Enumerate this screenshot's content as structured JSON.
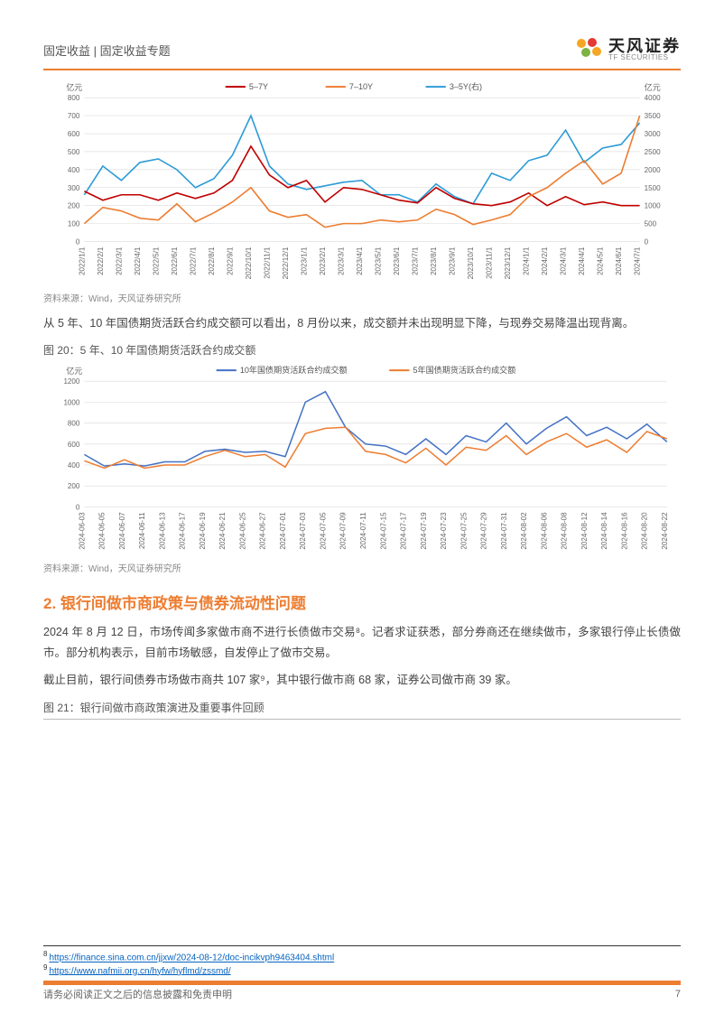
{
  "header": {
    "left": "固定收益 | 固定收益专题",
    "logo_cn": "天风证券",
    "logo_en": "TF SECURITIES"
  },
  "chart1": {
    "type": "line",
    "unit_left": "亿元",
    "unit_right": "亿元",
    "legend": [
      {
        "label": "5–7Y",
        "color": "#c00000"
      },
      {
        "label": "7–10Y",
        "color": "#ed7d31"
      },
      {
        "label": "3–5Y(右)",
        "color": "#2e9bd6"
      }
    ],
    "y_left": {
      "min": 0,
      "max": 800,
      "step": 100
    },
    "y_right": {
      "min": 0,
      "max": 4000,
      "step": 500
    },
    "x_labels": [
      "2022/1/1",
      "2022/2/1",
      "2022/3/1",
      "2022/4/1",
      "2022/5/1",
      "2022/6/1",
      "2022/7/1",
      "2022/8/1",
      "2022/9/1",
      "2022/10/1",
      "2022/11/1",
      "2022/12/1",
      "2023/1/1",
      "2023/2/1",
      "2023/3/1",
      "2023/4/1",
      "2023/5/1",
      "2023/6/1",
      "2023/7/1",
      "2023/8/1",
      "2023/9/1",
      "2023/10/1",
      "2023/11/1",
      "2023/12/1",
      "2024/1/1",
      "2024/2/1",
      "2024/3/1",
      "2024/4/1",
      "2024/5/1",
      "2024/6/1",
      "2024/7/1"
    ],
    "series_57": [
      280,
      230,
      260,
      260,
      230,
      270,
      240,
      270,
      340,
      530,
      370,
      300,
      340,
      220,
      300,
      290,
      260,
      230,
      215,
      300,
      240,
      210,
      200,
      220,
      270,
      200,
      250,
      205,
      220,
      200,
      200
    ],
    "series_710": [
      100,
      190,
      170,
      130,
      120,
      210,
      110,
      160,
      220,
      300,
      170,
      135,
      150,
      80,
      100,
      100,
      120,
      110,
      120,
      180,
      150,
      95,
      120,
      150,
      250,
      300,
      380,
      450,
      320,
      380,
      700
    ],
    "series_35_right": [
      1300,
      2100,
      1700,
      2200,
      2300,
      2000,
      1500,
      1750,
      2400,
      3500,
      2100,
      1600,
      1450,
      1550,
      1650,
      1700,
      1300,
      1300,
      1100,
      1600,
      1250,
      1050,
      1900,
      1700,
      2250,
      2400,
      3100,
      2200,
      2600,
      2700,
      3300
    ],
    "source": "资料来源：Wind，天风证券研究所",
    "grid_color": "#d9d9d9",
    "axis_color": "#7f7f7f",
    "tick_fontsize": 8,
    "label_fontsize": 9
  },
  "para1": "从 5 年、10 年国债期货活跃合约成交额可以看出，8 月份以来，成交额并未出现明显下降，与现券交易降温出现背离。",
  "fig20_title": "图 20：5 年、10 年国债期货活跃合约成交额",
  "chart2": {
    "type": "line",
    "unit_left": "亿元",
    "legend": [
      {
        "label": "10年国债期货活跃合约成交额",
        "color": "#4472c4"
      },
      {
        "label": "5年国债期货活跃合约成交额",
        "color": "#ed7d31"
      }
    ],
    "y_left": {
      "min": 0,
      "max": 1200,
      "step": 200
    },
    "x_labels": [
      "2024-06-03",
      "2024-06-05",
      "2024-06-07",
      "2024-06-11",
      "2024-06-13",
      "2024-06-17",
      "2024-06-19",
      "2024-06-21",
      "2024-06-25",
      "2024-06-27",
      "2024-07-01",
      "2024-07-03",
      "2024-07-05",
      "2024-07-09",
      "2024-07-11",
      "2024-07-15",
      "2024-07-17",
      "2024-07-19",
      "2024-07-23",
      "2024-07-25",
      "2024-07-29",
      "2024-07-31",
      "2024-08-02",
      "2024-08-06",
      "2024-08-08",
      "2024-08-12",
      "2024-08-14",
      "2024-08-16",
      "2024-08-20",
      "2024-08-22"
    ],
    "series_10y": [
      500,
      390,
      410,
      390,
      430,
      430,
      530,
      550,
      520,
      530,
      480,
      1000,
      1100,
      760,
      600,
      580,
      500,
      650,
      500,
      680,
      620,
      800,
      600,
      750,
      860,
      680,
      760,
      650,
      790,
      620
    ],
    "series_5y": [
      440,
      370,
      450,
      370,
      400,
      400,
      480,
      540,
      480,
      500,
      380,
      700,
      750,
      760,
      530,
      500,
      420,
      560,
      400,
      570,
      540,
      680,
      500,
      620,
      700,
      570,
      640,
      520,
      720,
      650
    ],
    "source": "资料来源：Wind，天风证券研究所",
    "grid_color": "#d9d9d9",
    "axis_color": "#7f7f7f",
    "tick_fontsize": 8
  },
  "section2_title": "2. 银行间做市商政策与债券流动性问题",
  "para2": "2024 年 8 月 12 日，市场传闻多家做市商不进行长债做市交易⁸。记者求证获悉，部分券商还在继续做市，多家银行停止长债做市。部分机构表示，目前市场敏感，自发停止了做市交易。",
  "para3": "截止目前，银行间债券市场做市商共 107 家⁹，其中银行做市商 68 家，证券公司做市商 39 家。",
  "fig21_title": "图 21：银行间做市商政策演进及重要事件回顾",
  "footnotes": [
    {
      "num": "8",
      "url": "https://finance.sina.com.cn/jjxw/2024-08-12/doc-incikvph9463404.shtml"
    },
    {
      "num": "9",
      "url": "https://www.nafmii.org.cn/hyfw/hyflmd/zssmd/"
    }
  ],
  "footer": {
    "text": "请务必阅读正文之后的信息披露和免责申明",
    "page": "7"
  },
  "logo_colors": [
    "#f5a623",
    "#7cb342",
    "#e53935"
  ]
}
